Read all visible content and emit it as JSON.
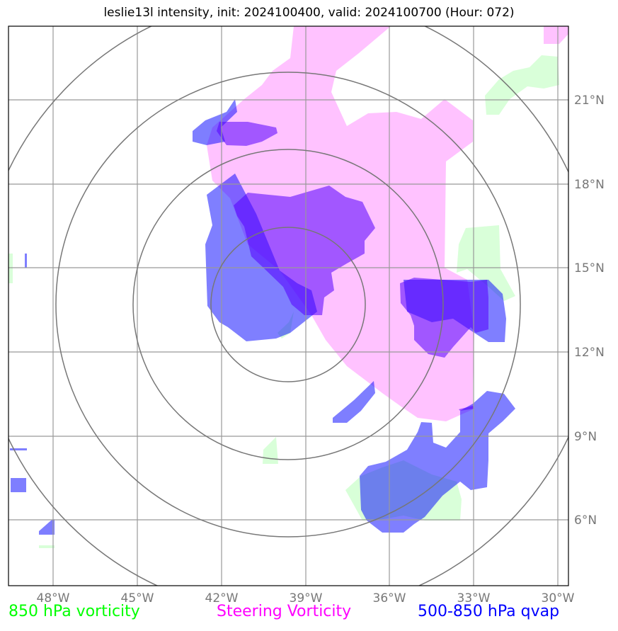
{
  "title": "leslie13l intensity, init: 2024100400, valid: 2024100700 (Hour: 072)",
  "legend": {
    "item1": "850 hPa vorticity",
    "item2": "Steering Vorticity",
    "item3": "500-850 hPa qvap"
  },
  "colors": {
    "vorticity_850": "#00ff00",
    "steering_vorticity": "#ff00ff",
    "qvap": "#0000ff",
    "gridline": "#999999",
    "range_ring": "#777777"
  },
  "axes": {
    "lon_ticks": [
      "48°W",
      "45°W",
      "42°W",
      "39°W",
      "36°W",
      "33°W",
      "30°W"
    ],
    "lat_ticks": [
      "21°N",
      "18°N",
      "15°N",
      "12°N",
      "9°N",
      "6°N"
    ],
    "lon_values": [
      -48,
      -45,
      -42,
      -39,
      -36,
      -33,
      -30
    ],
    "lat_values": [
      21,
      18,
      15,
      12,
      9,
      6
    ]
  }
}
